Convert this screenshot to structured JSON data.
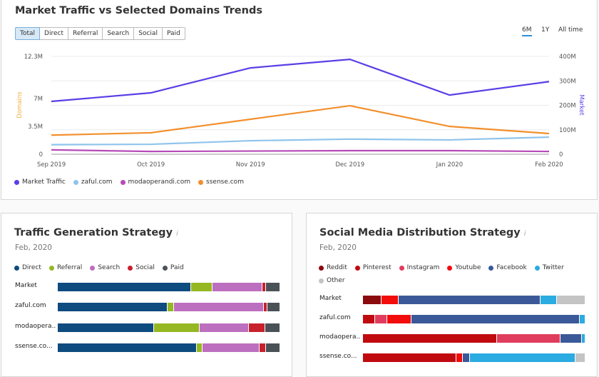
{
  "top": {
    "title": "Market Traffic vs Selected Domains Trends",
    "tabs": [
      "Total",
      "Direct",
      "Referral",
      "Search",
      "Social",
      "Paid"
    ],
    "active_tab": "Total",
    "periods": [
      "6M",
      "1Y",
      "All time"
    ],
    "active_period": "6M"
  },
  "chart_data": [
    {
      "type": "line",
      "title": "Market Traffic vs Selected Domains Trends",
      "x": [
        "Sep 2019",
        "Oct 2019",
        "Nov 2019",
        "Dec 2019",
        "Jan 2020",
        "Feb 2020"
      ],
      "ylabel": "Domains",
      "ylabel_right": "Market",
      "ylim": [
        0,
        12300000
      ],
      "ylim_right": [
        0,
        400000000
      ],
      "yticks": [
        "0",
        "3.5M",
        "7M",
        "12.3M"
      ],
      "yticks_values": [
        0,
        3500000,
        7000000,
        12300000
      ],
      "yticks_right": [
        "0",
        "100M",
        "200M",
        "300M",
        "400M"
      ],
      "yticks_right_values": [
        0,
        100000000,
        200000000,
        300000000,
        400000000
      ],
      "grid": true,
      "legend": "bottom-left",
      "series": [
        {
          "name": "Market Traffic",
          "axis": "right",
          "color": "#5b3ee6",
          "values": [
            216000000,
            251000000,
            353000000,
            388000000,
            242000000,
            297000000
          ]
        },
        {
          "name": "zaful.com",
          "axis": "left",
          "color": "#8fc4ec",
          "values": [
            1200000,
            1250000,
            1700000,
            1900000,
            1800000,
            2150000
          ]
        },
        {
          "name": "modaoperandi.com",
          "axis": "left",
          "color": "#b74bb8",
          "values": [
            550000,
            350000,
            400000,
            450000,
            450000,
            350000
          ]
        },
        {
          "name": "ssense.com",
          "axis": "left",
          "color": "#f28f2c",
          "values": [
            2400000,
            2700000,
            4400000,
            6100000,
            3500000,
            2600000
          ]
        }
      ]
    },
    {
      "type": "bar",
      "stacked": true,
      "orientation": "horizontal",
      "title": "Traffic Generation Strategy",
      "subtitle": "Feb, 2020",
      "unit": "percent",
      "categories": [
        "Market",
        "zaful.com",
        "modaopera...",
        "ssense.co..."
      ],
      "series": [
        {
          "name": "Direct",
          "color": "#0e4b7f",
          "values": [
            60,
            49.4,
            43.3,
            62.5
          ]
        },
        {
          "name": "Referral",
          "color": "#95b822",
          "values": [
            9.6,
            2.9,
            20.5,
            2.6
          ]
        },
        {
          "name": "Search",
          "color": "#bd6fbf",
          "values": [
            22.4,
            40.4,
            22.1,
            25.6
          ]
        },
        {
          "name": "Social",
          "color": "#c8202d",
          "values": [
            1.6,
            1.6,
            7.4,
            2.9
          ]
        },
        {
          "name": "Paid",
          "color": "#4a5258",
          "values": [
            6.4,
            5.7,
            6.7,
            6.4
          ]
        }
      ]
    },
    {
      "type": "bar",
      "stacked": true,
      "orientation": "horizontal",
      "title": "Social Media Distribution Strategy",
      "subtitle": "Feb, 2020",
      "unit": "percent",
      "categories": [
        "Market",
        "zaful.com",
        "modaopera...",
        "ssense.co..."
      ],
      "series": [
        {
          "name": "Reddit",
          "color": "#8a0a0e",
          "values": [
            8.3,
            0,
            0,
            0
          ]
        },
        {
          "name": "Pinterest",
          "color": "#c00a0f",
          "values": [
            0,
            5.4,
            60.3,
            41.9
          ]
        },
        {
          "name": "Instagram",
          "color": "#e03d5e",
          "values": [
            0,
            5.5,
            28.6,
            0
          ]
        },
        {
          "name": "Youtube",
          "color": "#f20c0c",
          "values": [
            7.7,
            10.9,
            0,
            2.9
          ]
        },
        {
          "name": "Facebook",
          "color": "#3b5998",
          "values": [
            63.8,
            75.5,
            9.6,
            3.3
          ]
        },
        {
          "name": "Twitter",
          "color": "#2aabe2",
          "values": [
            7.4,
            2.7,
            1.5,
            47.3
          ]
        },
        {
          "name": "Other",
          "color": "#c4c4c4",
          "values": [
            12.8,
            0,
            0,
            4.6
          ]
        }
      ]
    }
  ]
}
